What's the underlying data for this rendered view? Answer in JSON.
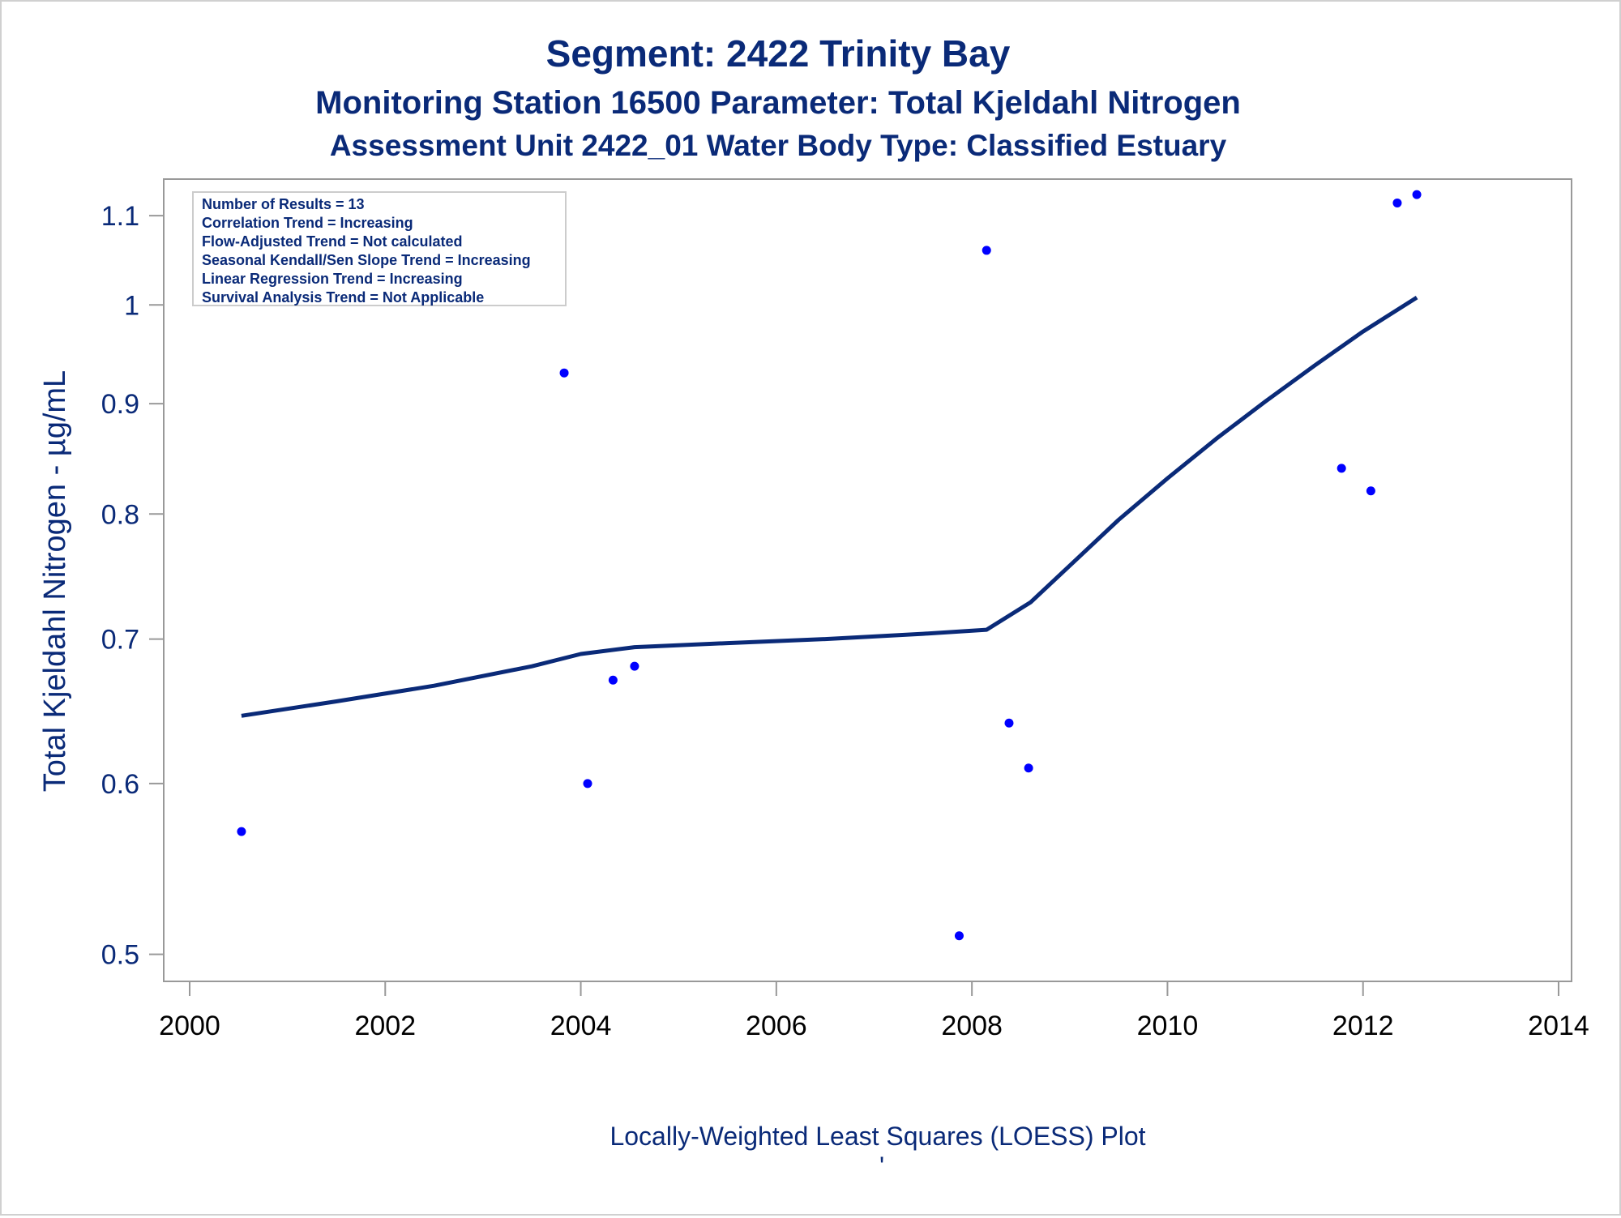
{
  "chart_data": {
    "type": "scatter",
    "title": "Segment: 2422  Trinity Bay",
    "subtitle": "Monitoring Station 16500 Parameter: Total Kjeldahl Nitrogen",
    "subtitle2": "Assessment Unit 2422_01   Water Body Type: Classified Estuary",
    "ylabel": "Total Kjeldahl Nitrogen -  µg/mL",
    "xlabel": "",
    "footnote": "Locally-Weighted Least Squares (LOESS) Plot",
    "footnote_mark": "'",
    "y_scale": "log",
    "xlim": [
      2000,
      2014
    ],
    "ylim": [
      0.49,
      1.13
    ],
    "x_ticks": [
      2000,
      2002,
      2004,
      2006,
      2008,
      2010,
      2012,
      2014
    ],
    "x_tick_labels": [
      "2000",
      "2002",
      "2004",
      "2006",
      "2008",
      "2010",
      "2012",
      "2014"
    ],
    "y_ticks": [
      0.5,
      0.6,
      0.7,
      0.8,
      0.9,
      1.0,
      1.1
    ],
    "y_tick_labels": [
      "0.5",
      "0.6",
      "0.7",
      "0.8",
      "0.9",
      "1",
      "1.1"
    ],
    "grid": false,
    "series": [
      {
        "type": "scatter",
        "color": "#0000ff",
        "points": [
          {
            "x": 2000.53,
            "y": 0.57
          },
          {
            "x": 2003.83,
            "y": 0.93
          },
          {
            "x": 2004.07,
            "y": 0.6
          },
          {
            "x": 2004.33,
            "y": 0.67
          },
          {
            "x": 2004.55,
            "y": 0.68
          },
          {
            "x": 2007.87,
            "y": 0.51
          },
          {
            "x": 2008.15,
            "y": 1.06
          },
          {
            "x": 2008.38,
            "y": 0.64
          },
          {
            "x": 2008.58,
            "y": 0.61
          },
          {
            "x": 2011.78,
            "y": 0.84
          },
          {
            "x": 2012.08,
            "y": 0.82
          },
          {
            "x": 2012.35,
            "y": 1.115
          },
          {
            "x": 2012.55,
            "y": 1.125
          }
        ]
      },
      {
        "type": "line",
        "color": "#0a2a78",
        "points": [
          {
            "x": 2000.53,
            "y": 0.645
          },
          {
            "x": 2001.5,
            "y": 0.655
          },
          {
            "x": 2002.5,
            "y": 0.666
          },
          {
            "x": 2003.5,
            "y": 0.68
          },
          {
            "x": 2004.0,
            "y": 0.689
          },
          {
            "x": 2004.55,
            "y": 0.694
          },
          {
            "x": 2005.5,
            "y": 0.697
          },
          {
            "x": 2006.5,
            "y": 0.7
          },
          {
            "x": 2007.5,
            "y": 0.704
          },
          {
            "x": 2008.15,
            "y": 0.707
          },
          {
            "x": 2008.6,
            "y": 0.728
          },
          {
            "x": 2009.0,
            "y": 0.757
          },
          {
            "x": 2009.5,
            "y": 0.795
          },
          {
            "x": 2010.0,
            "y": 0.831
          },
          {
            "x": 2010.5,
            "y": 0.867
          },
          {
            "x": 2011.0,
            "y": 0.902
          },
          {
            "x": 2011.5,
            "y": 0.937
          },
          {
            "x": 2012.0,
            "y": 0.972
          },
          {
            "x": 2012.55,
            "y": 1.008
          }
        ]
      }
    ],
    "legend": {
      "placement": "top-left",
      "entries": [
        "Number of Results = 13",
        "Correlation Trend = Increasing",
        "Flow-Adjusted Trend = Not calculated",
        "Seasonal Kendall/Sen Slope Trend = Increasing",
        "Linear Regression Trend = Increasing",
        "Survival Analysis Trend = Not Applicable"
      ]
    }
  },
  "colors": {
    "title": "#0a2a78",
    "points": "#0000ff",
    "line": "#0a2a78",
    "axis": "#999999"
  }
}
